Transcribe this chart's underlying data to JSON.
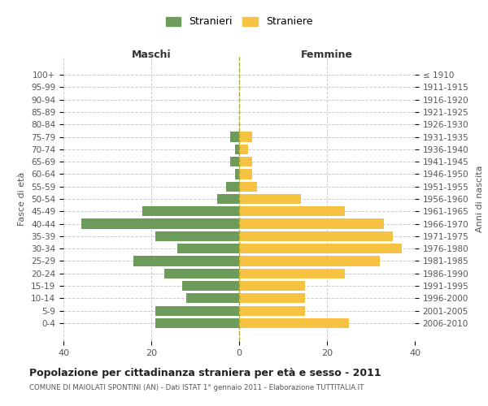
{
  "age_groups": [
    "100+",
    "95-99",
    "90-94",
    "85-89",
    "80-84",
    "75-79",
    "70-74",
    "65-69",
    "60-64",
    "55-59",
    "50-54",
    "45-49",
    "40-44",
    "35-39",
    "30-34",
    "25-29",
    "20-24",
    "15-19",
    "10-14",
    "5-9",
    "0-4"
  ],
  "birth_years": [
    "≤ 1910",
    "1911-1915",
    "1916-1920",
    "1921-1925",
    "1926-1930",
    "1931-1935",
    "1936-1940",
    "1941-1945",
    "1946-1950",
    "1951-1955",
    "1956-1960",
    "1961-1965",
    "1966-1970",
    "1971-1975",
    "1976-1980",
    "1981-1985",
    "1986-1990",
    "1991-1995",
    "1996-2000",
    "2001-2005",
    "2006-2010"
  ],
  "maschi": [
    0,
    0,
    0,
    0,
    0,
    2,
    1,
    2,
    1,
    3,
    5,
    22,
    36,
    19,
    14,
    24,
    17,
    13,
    12,
    19,
    19
  ],
  "femmine": [
    0,
    0,
    0,
    0,
    0,
    3,
    2,
    3,
    3,
    4,
    14,
    24,
    33,
    35,
    37,
    32,
    24,
    15,
    15,
    15,
    25
  ],
  "maschi_color": "#6d9c5a",
  "femmine_color": "#f5c242",
  "background_color": "#ffffff",
  "grid_color": "#cccccc",
  "title": "Popolazione per cittadinanza straniera per età e sesso - 2011",
  "subtitle": "COMUNE DI MAIOLATI SPONTINI (AN) - Dati ISTAT 1° gennaio 2011 - Elaborazione TUTTITALIA.IT",
  "left_label": "Maschi",
  "right_label": "Femmine",
  "ylabel_left": "Fasce di età",
  "ylabel_right": "Anni di nascita",
  "legend_maschi": "Stranieri",
  "legend_femmine": "Straniere",
  "xlim": 40,
  "bar_height": 0.8
}
